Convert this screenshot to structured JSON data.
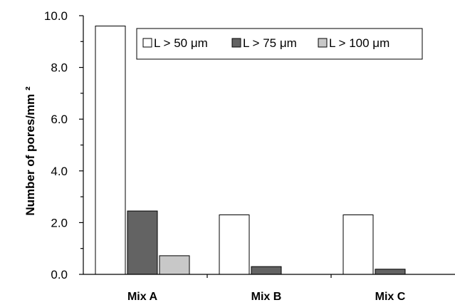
{
  "chart_data": {
    "type": "bar",
    "categories": [
      "Mix A",
      "Mix B",
      "Mix C"
    ],
    "series": [
      {
        "name": "L > 50 μm",
        "values": [
          9.6,
          2.3,
          2.3
        ],
        "color": "#ffffff"
      },
      {
        "name": "L > 75 μm",
        "values": [
          2.45,
          0.3,
          0.2
        ],
        "color": "#636363"
      },
      {
        "name": "L > 100 μm",
        "values": [
          0.72,
          0,
          0
        ],
        "color": "#c8c8c8"
      }
    ],
    "ylabel": "Number of pores/mm ²",
    "xlabel": "",
    "ylim": [
      0,
      10
    ],
    "yticks": [
      "0.0",
      "2.0",
      "4.0",
      "6.0",
      "8.0",
      "10.0"
    ],
    "grid": false,
    "legend": "top-right"
  }
}
